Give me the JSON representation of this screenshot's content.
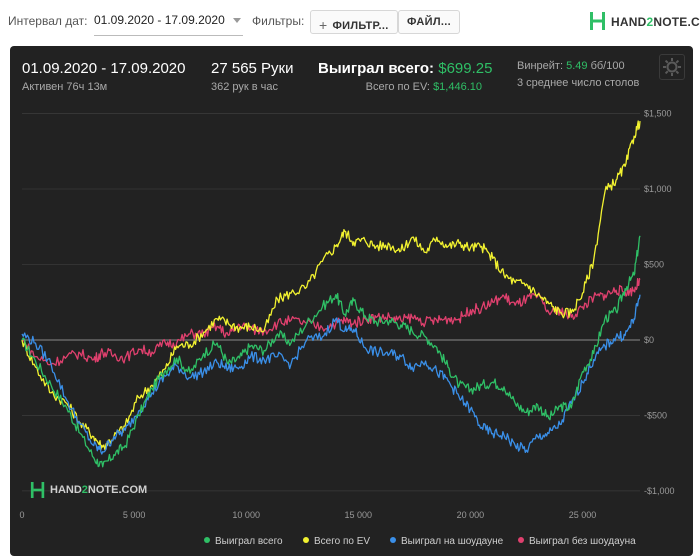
{
  "toolbar": {
    "date_label": "Интервал дат:",
    "date_value": "01.09.2020 - 17.09.2020",
    "filters_label": "Фильтры:",
    "filters_button": "ФИЛЬТР...",
    "files_button": "ФАЙЛ...",
    "logo_text_a": "HAND",
    "logo_text_b": "2",
    "logo_text_c": "NOTE.COM"
  },
  "stats": {
    "date_range": "01.09.2020 - 17.09.2020",
    "active": "Активен 76ч 13м",
    "hands": "27 565 Руки",
    "hands_per_hour": "362 рук в час",
    "won_label": "Выиграл всего:",
    "won_value": "$699.25",
    "ev_label": "Всего по EV:",
    "ev_value": "$1,446.10",
    "winrate_label": "Винрейт:",
    "winrate_value": "5.49",
    "winrate_unit": "бб/100",
    "tables": "3 среднее число столов"
  },
  "watermark": {
    "a": "HAND",
    "b": "2",
    "c": "NOTE.COM"
  },
  "colors": {
    "won": "#2fbf66",
    "ev": "#f2f230",
    "showdown": "#3a8fe8",
    "nonshowdown": "#e0406e",
    "panel": "#222222"
  },
  "chart_data": {
    "type": "line",
    "x_ticks": [
      0,
      5000,
      10000,
      15000,
      20000,
      25000
    ],
    "x_tick_labels": [
      "0",
      "5 000",
      "10 000",
      "15 000",
      "20 000",
      "25 000"
    ],
    "xlim": [
      0,
      27565
    ],
    "y_ticks": [
      -1000,
      -500,
      0,
      500,
      1000,
      1500
    ],
    "y_tick_labels": [
      "-$1,000",
      "-$500",
      "$0",
      "$500",
      "$1,000",
      "$1,500"
    ],
    "ylim": [
      -1100,
      1550
    ],
    "legend_position": "bottom",
    "series": [
      {
        "name": "Выиграл всего",
        "color_key": "won",
        "points": [
          [
            0,
            0
          ],
          [
            600,
            -140
          ],
          [
            1300,
            -300
          ],
          [
            2000,
            -450
          ],
          [
            2600,
            -620
          ],
          [
            3200,
            -780
          ],
          [
            3600,
            -840
          ],
          [
            4100,
            -760
          ],
          [
            4600,
            -700
          ],
          [
            5200,
            -500
          ],
          [
            5800,
            -320
          ],
          [
            6400,
            -200
          ],
          [
            6900,
            -120
          ],
          [
            7500,
            -220
          ],
          [
            8100,
            -90
          ],
          [
            8700,
            -20
          ],
          [
            9200,
            -160
          ],
          [
            9700,
            -120
          ],
          [
            10200,
            -40
          ],
          [
            10800,
            -70
          ],
          [
            11400,
            40
          ],
          [
            12000,
            -20
          ],
          [
            12700,
            110
          ],
          [
            13400,
            220
          ],
          [
            14000,
            300
          ],
          [
            14400,
            170
          ],
          [
            14800,
            260
          ],
          [
            15300,
            160
          ],
          [
            15800,
            120
          ],
          [
            16400,
            130
          ],
          [
            16900,
            100
          ],
          [
            17400,
            60
          ],
          [
            18000,
            20
          ],
          [
            18500,
            -50
          ],
          [
            19000,
            -180
          ],
          [
            19500,
            -300
          ],
          [
            20000,
            -330
          ],
          [
            20500,
            -300
          ],
          [
            21000,
            -280
          ],
          [
            21500,
            -310
          ],
          [
            22000,
            -420
          ],
          [
            22500,
            -480
          ],
          [
            23000,
            -430
          ],
          [
            23500,
            -520
          ],
          [
            24000,
            -440
          ],
          [
            24500,
            -450
          ],
          [
            25000,
            -210
          ],
          [
            25500,
            -90
          ],
          [
            26000,
            140
          ],
          [
            26500,
            190
          ],
          [
            26900,
            340
          ],
          [
            27300,
            430
          ],
          [
            27565,
            690
          ]
        ]
      },
      {
        "name": "Всего по EV",
        "color_key": "ev",
        "points": [
          [
            0,
            0
          ],
          [
            600,
            -180
          ],
          [
            1300,
            -350
          ],
          [
            2000,
            -420
          ],
          [
            2600,
            -550
          ],
          [
            3200,
            -640
          ],
          [
            3600,
            -710
          ],
          [
            4100,
            -640
          ],
          [
            4600,
            -570
          ],
          [
            5200,
            -380
          ],
          [
            5800,
            -300
          ],
          [
            6400,
            -190
          ],
          [
            6900,
            -40
          ],
          [
            7500,
            -30
          ],
          [
            8100,
            50
          ],
          [
            8700,
            140
          ],
          [
            9200,
            110
          ],
          [
            9700,
            80
          ],
          [
            10200,
            90
          ],
          [
            10800,
            60
          ],
          [
            11400,
            270
          ],
          [
            12000,
            310
          ],
          [
            12700,
            350
          ],
          [
            13400,
            520
          ],
          [
            14000,
            620
          ],
          [
            14400,
            720
          ],
          [
            14800,
            650
          ],
          [
            15300,
            660
          ],
          [
            15800,
            620
          ],
          [
            16400,
            630
          ],
          [
            16900,
            590
          ],
          [
            17400,
            680
          ],
          [
            18000,
            580
          ],
          [
            18500,
            680
          ],
          [
            19000,
            620
          ],
          [
            19500,
            640
          ],
          [
            20000,
            610
          ],
          [
            20500,
            620
          ],
          [
            21000,
            540
          ],
          [
            21500,
            430
          ],
          [
            22000,
            380
          ],
          [
            22500,
            370
          ],
          [
            23000,
            300
          ],
          [
            23500,
            240
          ],
          [
            24000,
            180
          ],
          [
            24500,
            180
          ],
          [
            25000,
            310
          ],
          [
            25500,
            530
          ],
          [
            26000,
            980
          ],
          [
            26500,
            1060
          ],
          [
            26900,
            1150
          ],
          [
            27300,
            1350
          ],
          [
            27565,
            1450
          ]
        ]
      },
      {
        "name": "Выиграл на шоудауне",
        "color_key": "showdown",
        "points": [
          [
            0,
            40
          ],
          [
            600,
            -20
          ],
          [
            1300,
            -160
          ],
          [
            2000,
            -400
          ],
          [
            2600,
            -560
          ],
          [
            3200,
            -700
          ],
          [
            3600,
            -740
          ],
          [
            4100,
            -640
          ],
          [
            4600,
            -600
          ],
          [
            5200,
            -470
          ],
          [
            5800,
            -350
          ],
          [
            6400,
            -240
          ],
          [
            6900,
            -170
          ],
          [
            7500,
            -250
          ],
          [
            8100,
            -210
          ],
          [
            8700,
            -150
          ],
          [
            9200,
            -190
          ],
          [
            9700,
            -180
          ],
          [
            10200,
            -110
          ],
          [
            10800,
            -130
          ],
          [
            11400,
            -110
          ],
          [
            12000,
            -160
          ],
          [
            12700,
            0
          ],
          [
            13400,
            20
          ],
          [
            14000,
            140
          ],
          [
            14400,
            60
          ],
          [
            14800,
            70
          ],
          [
            15300,
            -50
          ],
          [
            15800,
            -80
          ],
          [
            16400,
            -90
          ],
          [
            16900,
            -110
          ],
          [
            17400,
            -180
          ],
          [
            18000,
            -140
          ],
          [
            18500,
            -210
          ],
          [
            19000,
            -270
          ],
          [
            19500,
            -380
          ],
          [
            20000,
            -460
          ],
          [
            20500,
            -580
          ],
          [
            21000,
            -620
          ],
          [
            21500,
            -630
          ],
          [
            22000,
            -700
          ],
          [
            22500,
            -730
          ],
          [
            23000,
            -640
          ],
          [
            23500,
            -620
          ],
          [
            24000,
            -560
          ],
          [
            24500,
            -420
          ],
          [
            25000,
            -280
          ],
          [
            25500,
            -130
          ],
          [
            26000,
            -40
          ],
          [
            26500,
            20
          ],
          [
            26900,
            30
          ],
          [
            27300,
            140
          ],
          [
            27565,
            300
          ]
        ]
      },
      {
        "name": "Выиграл без шоудауна",
        "color_key": "nonshowdown",
        "points": [
          [
            0,
            0
          ],
          [
            600,
            -110
          ],
          [
            1300,
            -160
          ],
          [
            2000,
            -110
          ],
          [
            2600,
            -90
          ],
          [
            3200,
            -130
          ],
          [
            3600,
            -80
          ],
          [
            4100,
            -100
          ],
          [
            4600,
            -120
          ],
          [
            5200,
            -60
          ],
          [
            5800,
            -80
          ],
          [
            6400,
            -20
          ],
          [
            6900,
            -20
          ],
          [
            7500,
            40
          ],
          [
            8100,
            40
          ],
          [
            8700,
            90
          ],
          [
            9200,
            30
          ],
          [
            9700,
            100
          ],
          [
            10200,
            70
          ],
          [
            10800,
            60
          ],
          [
            11400,
            110
          ],
          [
            12000,
            130
          ],
          [
            12700,
            110
          ],
          [
            13400,
            80
          ],
          [
            14000,
            110
          ],
          [
            14400,
            130
          ],
          [
            14800,
            110
          ],
          [
            15300,
            140
          ],
          [
            15800,
            150
          ],
          [
            16400,
            150
          ],
          [
            16900,
            130
          ],
          [
            17400,
            150
          ],
          [
            18000,
            120
          ],
          [
            18500,
            130
          ],
          [
            19000,
            140
          ],
          [
            19500,
            140
          ],
          [
            20000,
            200
          ],
          [
            20500,
            210
          ],
          [
            21000,
            250
          ],
          [
            21500,
            290
          ],
          [
            22000,
            230
          ],
          [
            22500,
            270
          ],
          [
            23000,
            290
          ],
          [
            23500,
            180
          ],
          [
            24000,
            200
          ],
          [
            24500,
            150
          ],
          [
            25000,
            220
          ],
          [
            25500,
            280
          ],
          [
            26000,
            300
          ],
          [
            26500,
            330
          ],
          [
            26900,
            320
          ],
          [
            27300,
            330
          ],
          [
            27565,
            400
          ]
        ]
      }
    ]
  }
}
